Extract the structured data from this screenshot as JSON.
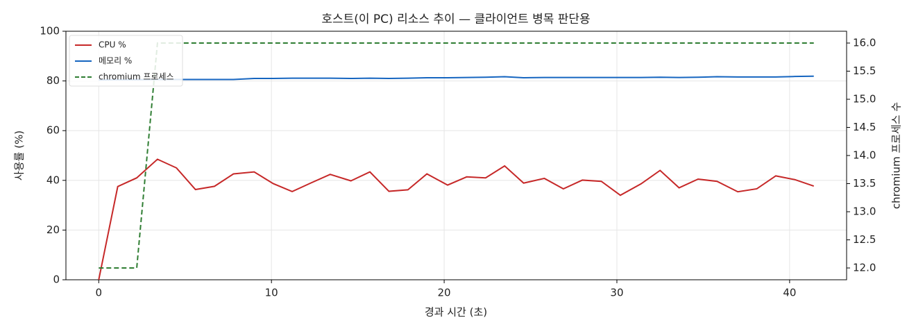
{
  "chart_data": {
    "type": "line",
    "title": "호스트(이 PC) 리소스 추이 — 클라이언트 병목 판단용",
    "xlabel": "경과 시간 (초)",
    "ylabel": "사용률 (%)",
    "y2label": "chromium 프로세스 수",
    "x": [
      0,
      1.1,
      2.2,
      3.4,
      4.5,
      5.6,
      6.7,
      7.8,
      9.0,
      10.1,
      11.2,
      12.3,
      13.4,
      14.6,
      15.7,
      16.8,
      17.9,
      19.0,
      20.2,
      21.3,
      22.4,
      23.5,
      24.6,
      25.8,
      26.9,
      28.0,
      29.1,
      30.2,
      31.4,
      32.5,
      33.6,
      34.7,
      35.8,
      37.0,
      38.1,
      39.2,
      40.3,
      41.4
    ],
    "series": [
      {
        "name": "CPU %",
        "color": "#c62828",
        "dashed": false,
        "values": [
          0,
          37.5,
          41,
          48.5,
          45,
          36.3,
          37.6,
          42.6,
          43.4,
          38.7,
          35.5,
          39,
          42.4,
          39.8,
          43.4,
          35.6,
          36.2,
          42.6,
          38.1,
          41.4,
          41,
          45.8,
          38.9,
          40.8,
          36.6,
          40.1,
          39.6,
          34,
          38.6,
          44,
          37,
          40.5,
          39.6,
          35.4,
          36.6,
          41.8,
          40.3,
          37.7
        ]
      },
      {
        "name": "메모리 %",
        "color": "#1565c0",
        "dashed": false,
        "values": [
          80.4,
          80.5,
          80.5,
          80.6,
          80.6,
          80.6,
          80.6,
          80.6,
          81,
          81,
          81.1,
          81.1,
          81.1,
          81,
          81.1,
          81,
          81.1,
          81.3,
          81.3,
          81.4,
          81.5,
          81.7,
          81.3,
          81.4,
          81.4,
          81.4,
          81.4,
          81.4,
          81.4,
          81.5,
          81.4,
          81.5,
          81.7,
          81.6,
          81.6,
          81.6,
          81.8,
          81.9
        ]
      },
      {
        "name": "chromium 프로세스",
        "color": "#2e7d32",
        "dashed": true,
        "axis": "y2",
        "values": [
          12,
          12,
          12,
          16,
          16,
          16,
          16,
          16,
          16,
          16,
          16,
          16,
          16,
          16,
          16,
          16,
          16,
          16,
          16,
          16,
          16,
          16,
          16,
          16,
          16,
          16,
          16,
          16,
          16,
          16,
          16,
          16,
          16,
          16,
          16,
          16,
          16,
          16
        ]
      }
    ],
    "xlim": [
      -1.9,
      43.3
    ],
    "xticks": [
      0,
      10,
      20,
      30,
      40
    ],
    "ylim": [
      0,
      100
    ],
    "yticks": [
      0,
      20,
      40,
      60,
      80,
      100
    ],
    "y2lim": [
      11.79,
      16.21
    ],
    "y2ticks": [
      {
        "value": 12,
        "label": "12.0"
      },
      {
        "value": 12.5,
        "label": "12.5"
      },
      {
        "value": 13,
        "label": "13.0"
      },
      {
        "value": 13.5,
        "label": "13.5"
      },
      {
        "value": 14,
        "label": "14.0"
      },
      {
        "value": 14.5,
        "label": "14.5"
      },
      {
        "value": 15,
        "label": "15.0"
      },
      {
        "value": 15.5,
        "label": "15.5"
      },
      {
        "value": 16,
        "label": "16.0"
      }
    ],
    "grid": true,
    "legend": "upper-left"
  }
}
